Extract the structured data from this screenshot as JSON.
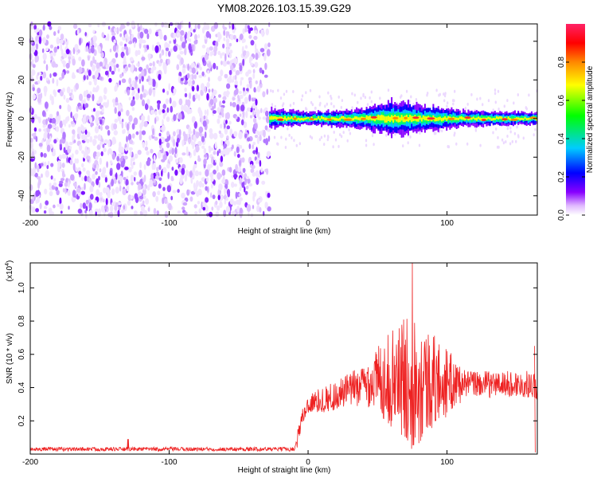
{
  "title": "YM08.2026.103.15.39.G29",
  "chart_data": [
    {
      "type": "heatmap",
      "xlabel": "Height of straight line (km)",
      "ylabel": "Frequency (Hz)",
      "xlim": [
        -200,
        165
      ],
      "ylim": [
        -50,
        49
      ],
      "x_ticks": [
        -200,
        -100,
        0,
        100
      ],
      "y_ticks": [
        -40,
        -20,
        0,
        20,
        40
      ],
      "x_tick_labels": [
        "-200",
        "-100",
        "0",
        "100"
      ],
      "y_tick_labels": [
        "-40",
        "-20",
        "0",
        "20",
        "40"
      ],
      "noise_region_x": [
        -200,
        -28
      ],
      "band": {
        "x_start": -28,
        "center_freq": 0,
        "half_width_profile": [
          {
            "x": -28,
            "w": 5
          },
          {
            "x": 0,
            "w": 3
          },
          {
            "x": 40,
            "w": 5
          },
          {
            "x": 60,
            "w": 9
          },
          {
            "x": 80,
            "w": 7
          },
          {
            "x": 110,
            "w": 4
          },
          {
            "x": 165,
            "w": 3
          }
        ]
      },
      "colorbar": {
        "label": "Normalized spectral amplitude",
        "range": [
          0,
          1
        ],
        "ticks": [
          0.0,
          0.2,
          0.4,
          0.6,
          0.8
        ],
        "tick_labels": [
          "0.0",
          "0.2",
          "0.4",
          "0.6",
          "0.8"
        ],
        "colors": [
          "#ffffff",
          "#e0b8ff",
          "#8800ff",
          "#0000ff",
          "#00ccff",
          "#00ff00",
          "#ffff00",
          "#ff8800",
          "#ff0000",
          "#ff2266"
        ]
      }
    },
    {
      "type": "line",
      "xlabel": "Height of straight line (km)",
      "ylabel": "SNR (10 * v/v)",
      "y_scale_note": "(x10",
      "y_scale_exp": "4",
      "xlim": [
        -200,
        165
      ],
      "ylim": [
        0,
        1.15
      ],
      "x_ticks": [
        -200,
        -100,
        0,
        100
      ],
      "y_ticks": [
        0.2,
        0.4,
        0.6,
        0.8,
        1.0
      ],
      "x_tick_labels": [
        "-200",
        "-100",
        "0",
        "100"
      ],
      "y_tick_labels": [
        "0.2",
        "0.4",
        "0.6",
        "0.8",
        "1.0"
      ],
      "color": "#ee2222",
      "envelope": [
        {
          "x": -200,
          "y": 0.03
        },
        {
          "x": -10,
          "y": 0.03
        },
        {
          "x": -8,
          "y": 0.08
        },
        {
          "x": -5,
          "y": 0.2
        },
        {
          "x": 0,
          "y": 0.3
        },
        {
          "x": 20,
          "y": 0.35
        },
        {
          "x": 40,
          "y": 0.42
        },
        {
          "x": 50,
          "y": 0.45
        },
        {
          "x": 70,
          "y": 0.45
        },
        {
          "x": 100,
          "y": 0.43
        },
        {
          "x": 130,
          "y": 0.42
        },
        {
          "x": 160,
          "y": 0.42
        },
        {
          "x": 165,
          "y": 0.4
        }
      ],
      "peak": {
        "x": 75,
        "y": 1.15
      }
    }
  ]
}
